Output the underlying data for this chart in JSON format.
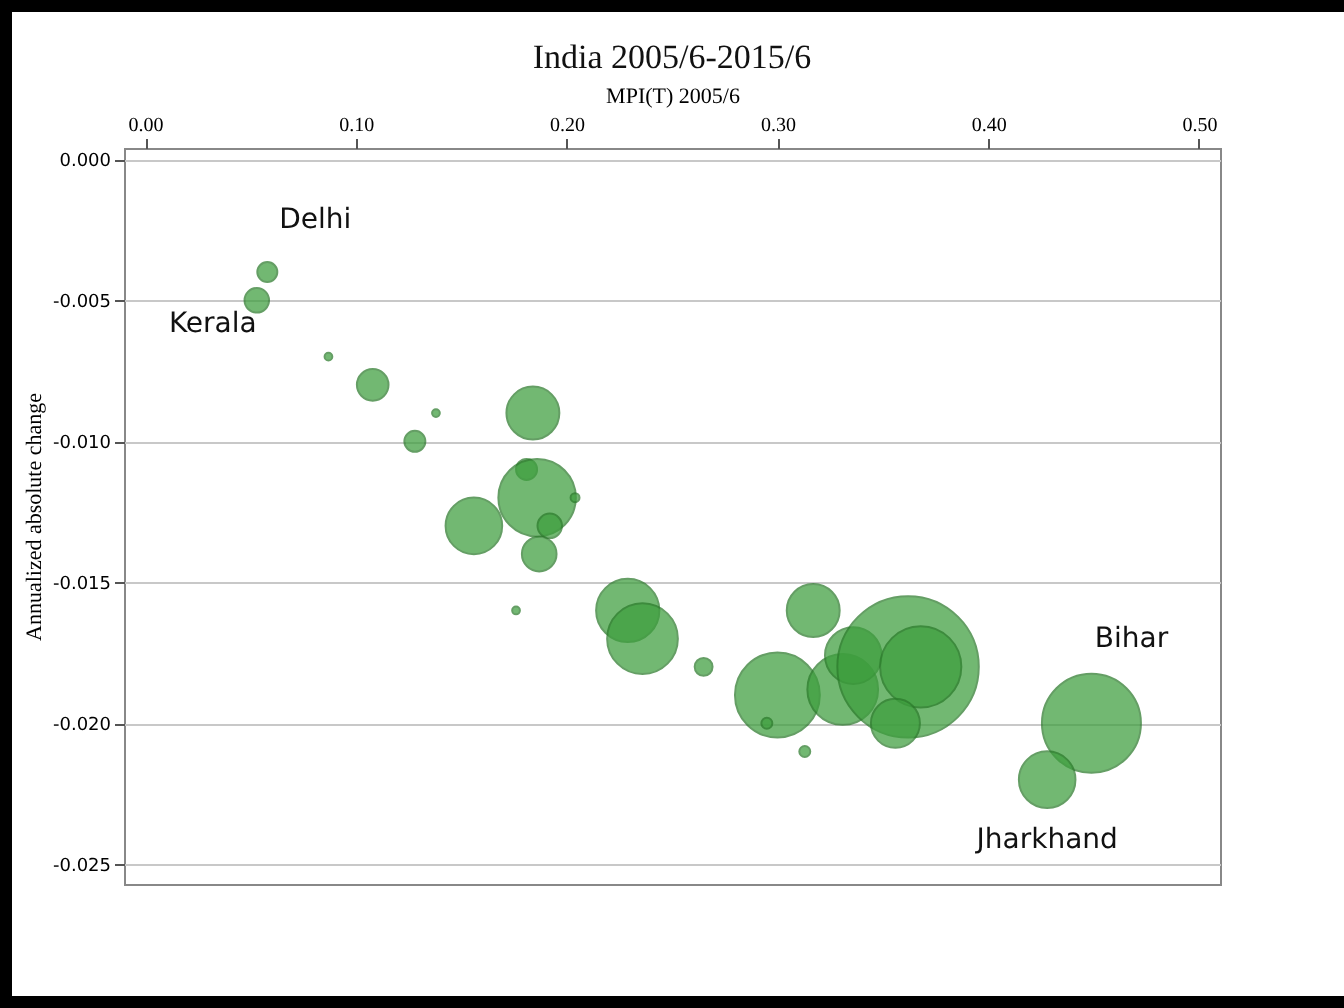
{
  "chart_data": {
    "type": "bubble",
    "title": "India 2005/6-2015/6",
    "xlabel": "MPI(T) 2005/6",
    "ylabel": "Annualized absolute change",
    "x": [
      0.058,
      0.053,
      0.087,
      0.108,
      0.138,
      0.128,
      0.184,
      0.181,
      0.186,
      0.204,
      0.192,
      0.156,
      0.187,
      0.176,
      0.229,
      0.236,
      0.265,
      0.3,
      0.295,
      0.313,
      0.317,
      0.331,
      0.336,
      0.362,
      0.368,
      0.356,
      0.449,
      0.428
    ],
    "series": [
      {
        "color": "#3d9e3d",
        "values": [
          -0.004,
          -0.005,
          -0.007,
          -0.008,
          -0.009,
          -0.01,
          -0.009,
          -0.011,
          -0.012,
          -0.012,
          -0.013,
          -0.013,
          -0.014,
          -0.016,
          -0.016,
          -0.017,
          -0.018,
          -0.019,
          -0.02,
          -0.021,
          -0.016,
          -0.0188,
          -0.0176,
          -0.018,
          -0.018,
          -0.02,
          -0.02,
          -0.022
        ],
        "sizes": [
          0.02,
          0.03,
          0.003,
          0.05,
          0.003,
          0.022,
          0.14,
          0.022,
          0.3,
          0.004,
          0.03,
          0.16,
          0.06,
          0.003,
          0.2,
          0.25,
          0.016,
          0.36,
          0.006,
          0.006,
          0.14,
          0.25,
          0.16,
          1,
          0.33,
          0.12,
          0.49,
          0.16
        ]
      }
    ],
    "xlim": [
      -0.01,
      0.51
    ],
    "ylim": [
      -0.0257,
      0.0004
    ],
    "xticks": [
      {
        "value": 0,
        "label": "0.00"
      },
      {
        "value": 0.1,
        "label": "0.10"
      },
      {
        "value": 0.2,
        "label": "0.20"
      },
      {
        "value": 0.3,
        "label": "0.30"
      },
      {
        "value": 0.4,
        "label": "0.40"
      },
      {
        "value": 0.5,
        "label": "0.50"
      }
    ],
    "yticks": [
      {
        "value": 0,
        "label": "0.000"
      },
      {
        "value": -0.005,
        "label": "-0.005"
      },
      {
        "value": -0.01,
        "label": "-0.010"
      },
      {
        "value": -0.015,
        "label": "-0.015"
      },
      {
        "value": -0.02,
        "label": "-0.020"
      },
      {
        "value": -0.025,
        "label": "-0.025"
      }
    ],
    "grid": "y",
    "annotations": [
      {
        "text": "Delhi",
        "x": 0.058,
        "y": -0.004
      },
      {
        "text": "Kerala",
        "x": 0.053,
        "y": -0.005
      },
      {
        "text": "Bihar",
        "x": 0.449,
        "y": -0.02
      },
      {
        "text": "Jharkhand",
        "x": 0.428,
        "y": -0.022
      }
    ]
  }
}
